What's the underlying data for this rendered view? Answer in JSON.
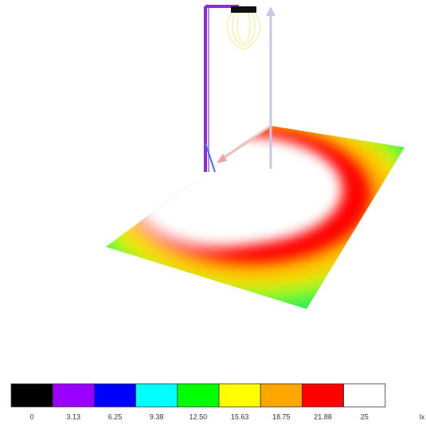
{
  "legend": {
    "levels": [
      {
        "label": "0",
        "color": "#000000"
      },
      {
        "label": "3.13",
        "color": "#9900ff"
      },
      {
        "label": "6.25",
        "color": "#0000ff"
      },
      {
        "label": "9.38",
        "color": "#00ffff"
      },
      {
        "label": "12.50",
        "color": "#00ff00"
      },
      {
        "label": "15.63",
        "color": "#ffff00"
      },
      {
        "label": "18.75",
        "color": "#ffa500"
      },
      {
        "label": "21.88",
        "color": "#ff0000"
      },
      {
        "label": "25",
        "color": "#ffffff"
      }
    ],
    "unit": "lx"
  }
}
